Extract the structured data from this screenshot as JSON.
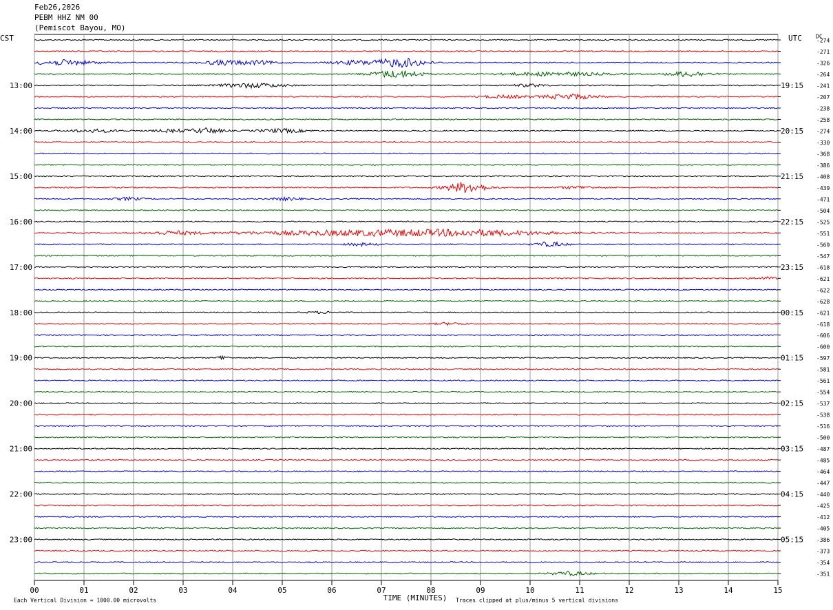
{
  "header": {
    "date": "Feb26,2026",
    "station": "PEBM HHZ NM 00",
    "location": "(Pemiscot Bayou, MO)"
  },
  "left_zone": "CST",
  "right_zone": "UTC",
  "dc_label": "DC",
  "left_hours": [
    "13:00",
    "14:00",
    "15:00",
    "16:00",
    "17:00",
    "18:00",
    "19:00",
    "20:00",
    "21:00",
    "22:00",
    "23:00"
  ],
  "right_hours": [
    "19:15",
    "20:15",
    "21:15",
    "22:15",
    "23:15",
    "00:15",
    "01:15",
    "02:15",
    "03:15",
    "04:15",
    "05:15"
  ],
  "dc_offsets": [
    -274,
    -271,
    -326,
    -264,
    -241,
    -207,
    -238,
    -258,
    -274,
    -330,
    -368,
    -386,
    -408,
    -439,
    -471,
    -504,
    -525,
    -551,
    -569,
    -547,
    -618,
    -621,
    -622,
    -628,
    -621,
    -618,
    -606,
    -600,
    -597,
    -581,
    -561,
    -554,
    -537,
    -538,
    -516,
    -500,
    -487,
    -485,
    -464,
    -447,
    -440,
    -425,
    -412,
    -405,
    -386,
    -373,
    -354,
    -351
  ],
  "x_ticks": [
    "00",
    "01",
    "02",
    "03",
    "04",
    "05",
    "06",
    "07",
    "08",
    "09",
    "10",
    "11",
    "12",
    "13",
    "14",
    "15"
  ],
  "x_label": "TIME (MINUTES)",
  "footer_left": "Each Vertical Division = 1000.00 microvolts",
  "footer_right": "Traces clipped at plus/minus 5 vertical divisions"
}
